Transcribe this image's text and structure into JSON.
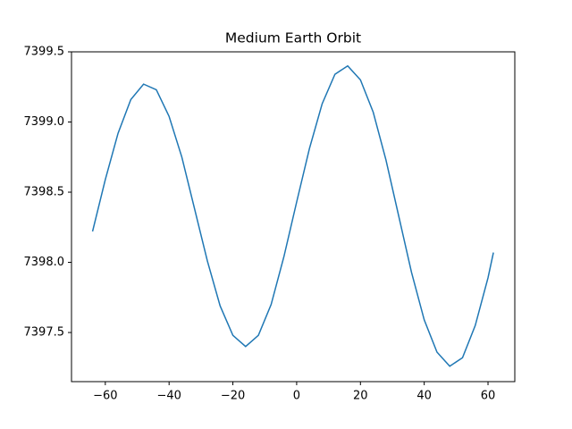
{
  "chart_data": {
    "type": "line",
    "title": "Medium Earth Orbit",
    "x": [
      -64,
      -60,
      -56,
      -52,
      -48,
      -44,
      -40,
      -36,
      -32,
      -28,
      -24,
      -20,
      -16,
      -12,
      -8,
      -4,
      0,
      4,
      8,
      12,
      16,
      20,
      24,
      28,
      32,
      36,
      40,
      44,
      48,
      52,
      56,
      60,
      61.7
    ],
    "series": [
      {
        "color": "#1f77b4",
        "values": [
          7398.22,
          7398.59,
          7398.92,
          7399.16,
          7399.27,
          7399.23,
          7399.04,
          7398.75,
          7398.38,
          7398.01,
          7397.69,
          7397.48,
          7397.4,
          7397.48,
          7397.7,
          7398.04,
          7398.43,
          7398.81,
          7399.13,
          7399.34,
          7399.4,
          7399.3,
          7399.07,
          7398.73,
          7398.33,
          7397.93,
          7397.59,
          7397.36,
          7397.26,
          7397.32,
          7397.55,
          7397.89,
          7398.07
        ]
      }
    ],
    "xlim": [
      -70.6,
      68.4
    ],
    "xticks": [
      -60,
      -40,
      -20,
      0,
      20,
      40,
      60
    ],
    "ylim": [
      7397.15,
      7399.5
    ],
    "yticks": [
      {
        "value": 7397.5,
        "label": "7397.5"
      },
      {
        "value": 7398,
        "label": "7398.0"
      },
      {
        "value": 7398.5,
        "label": "7398.5"
      },
      {
        "value": 7399,
        "label": "7399.0"
      },
      {
        "value": 7399.5,
        "label": "7399.5"
      }
    ],
    "grid": false
  }
}
